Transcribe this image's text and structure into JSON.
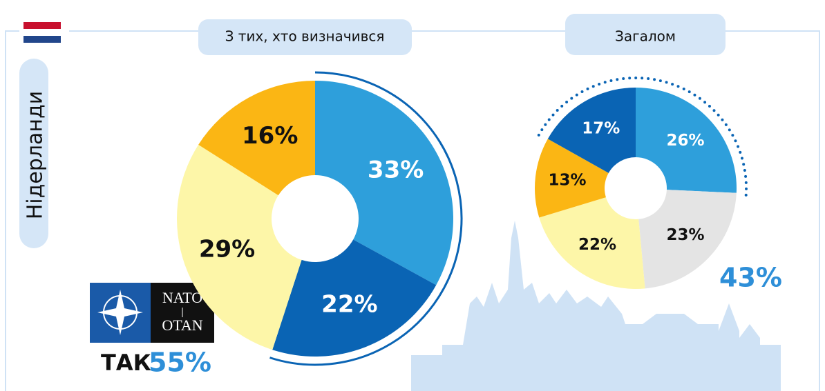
{
  "country": "Нідерланди",
  "logo": {
    "top": "NATO",
    "bottom": "OTAN"
  },
  "yes_label": "ТАК",
  "chart_data": [
    {
      "type": "donut",
      "title": "З тих, хто визначився",
      "values": [
        33,
        22,
        29,
        16
      ],
      "value_labels": [
        "33%",
        "22%",
        "29%",
        "16%"
      ],
      "colors": [
        "#2e9fdb",
        "#0a64b4",
        "#fdf6a8",
        "#fbb614"
      ],
      "total": 55,
      "total_label": "55%"
    },
    {
      "type": "donut",
      "title": "Загалом",
      "values": [
        26,
        23,
        22,
        13,
        17
      ],
      "value_labels": [
        "26%",
        "23%",
        "22%",
        "13%",
        "17%"
      ],
      "colors": [
        "#2e9fdb",
        "#e4e4e4",
        "#fdf6a8",
        "#fbb614",
        "#0a64b4"
      ],
      "total": 43,
      "total_label": "43%"
    }
  ]
}
